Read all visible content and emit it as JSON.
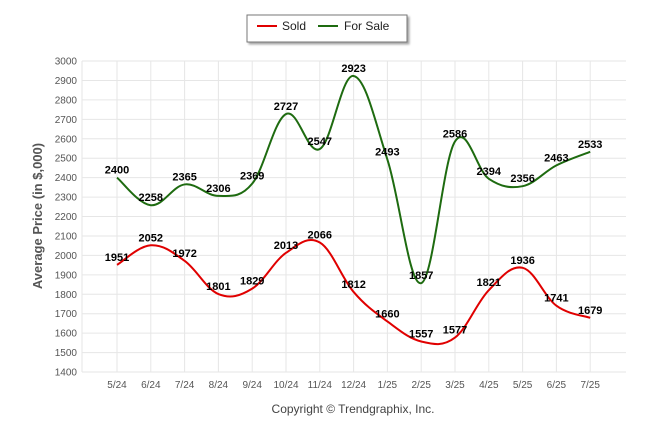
{
  "chart_data": {
    "type": "line",
    "ylabel": "Average Price (in $,000)",
    "xlabel": "",
    "ylim": [
      1400,
      3000
    ],
    "y_ticks": [
      1400,
      1500,
      1600,
      1700,
      1800,
      1900,
      2000,
      2100,
      2200,
      2300,
      2400,
      2500,
      2600,
      2700,
      2800,
      2900,
      3000
    ],
    "categories": [
      "5/24",
      "6/24",
      "7/24",
      "8/24",
      "9/24",
      "10/24",
      "11/24",
      "12/24",
      "1/25",
      "2/25",
      "3/25",
      "4/25",
      "5/25",
      "6/25",
      "7/25"
    ],
    "series": [
      {
        "name": "Sold",
        "color": "#e00000",
        "values": [
          1951,
          2052,
          1972,
          1801,
          1829,
          2013,
          2066,
          1812,
          1660,
          1557,
          1577,
          1821,
          1936,
          1741,
          1679
        ]
      },
      {
        "name": "For Sale",
        "color": "#1e6b10",
        "values": [
          2400,
          2258,
          2365,
          2306,
          2369,
          2727,
          2547,
          2923,
          2493,
          1857,
          2586,
          2394,
          2356,
          2463,
          2533
        ]
      }
    ],
    "grid": true,
    "legend_position": "top-center",
    "copyright": "Copyright © Trendgraphix, Inc."
  }
}
